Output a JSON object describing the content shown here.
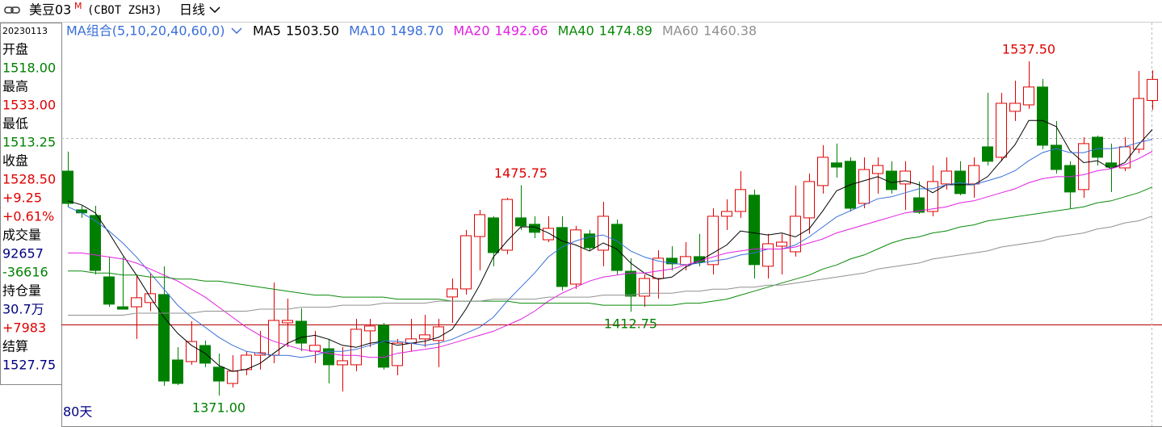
{
  "chart_data": {
    "type": "candlestick",
    "title": "美豆03",
    "title_mark": "M",
    "symbol": "(CBOT ZSH3)",
    "period": "日线",
    "ma_group": "MA组合(5,10,20,40,60,0)",
    "span": "80天",
    "ylim": [
      1355.7,
      1556.8
    ],
    "up_color": "#e00000",
    "down_color": "#008000",
    "candles": {
      "open": [
        1482.8,
        1463.5,
        1460.7,
        1430.1,
        1415.2,
        1415.2,
        1417.3,
        1421.3,
        1388.7,
        1387.9,
        1395.9,
        1385.1,
        1377,
        1383.9,
        1391.1,
        1391.1,
        1407.2,
        1408,
        1393.1,
        1394.3,
        1386.3,
        1386.3,
        1403.2,
        1406,
        1385.9,
        1397.1,
        1399.2,
        1398.4,
        1420.1,
        1424.1,
        1450.2,
        1459.5,
        1443.4,
        1459.5,
        1456.3,
        1448.6,
        1454.7,
        1426.5,
        1451.5,
        1443.4,
        1456.3,
        1432.9,
        1420.5,
        1429.3,
        1439.4,
        1436.2,
        1440.2,
        1436.2,
        1460.3,
        1462.7,
        1470.8,
        1435.4,
        1445.4,
        1442.6,
        1459.5,
        1475.6,
        1486.9,
        1487.7,
        1466.7,
        1481.6,
        1482.8,
        1476.4,
        1469.5,
        1462.7,
        1476.4,
        1482.8,
        1476.4,
        1494.9,
        1489.7,
        1512.6,
        1515.8,
        1524.7,
        1495.7,
        1485.6,
        1473.6,
        1499.7,
        1486.9,
        1484.4,
        1493.7,
        1518
      ],
      "high": [
        1492.5,
        1465.5,
        1465.5,
        1440.2,
        1440,
        1431.3,
        1432,
        1435.4,
        1395.1,
        1408,
        1398.4,
        1391.9,
        1391.1,
        1393.1,
        1403.2,
        1427.3,
        1419.3,
        1414.4,
        1403.2,
        1399.2,
        1395.1,
        1409.2,
        1409.2,
        1407.2,
        1399.2,
        1409.2,
        1411.2,
        1409.2,
        1429.3,
        1453.5,
        1463.5,
        1460.3,
        1469.5,
        1475.75,
        1460.3,
        1460.3,
        1460.3,
        1455.5,
        1453.5,
        1467.5,
        1458.7,
        1439.4,
        1431.3,
        1443.4,
        1445.4,
        1447.4,
        1451.5,
        1464.3,
        1468.7,
        1482.8,
        1473.6,
        1451.5,
        1451.5,
        1475.6,
        1481.6,
        1495.7,
        1496.5,
        1489.7,
        1489.7,
        1489.7,
        1487.7,
        1487.7,
        1477.6,
        1485.6,
        1489.7,
        1487.7,
        1489.7,
        1521.8,
        1521.8,
        1527.9,
        1537.5,
        1528.7,
        1507.8,
        1487.7,
        1499.7,
        1500.5,
        1496.5,
        1499.7,
        1532.7,
        1533
      ],
      "low": [
        1464.7,
        1459.5,
        1431.3,
        1415.2,
        1414,
        1399.2,
        1413,
        1375.8,
        1376.2,
        1386.3,
        1385.1,
        1371,
        1375,
        1381.1,
        1383.9,
        1387.1,
        1395.1,
        1393.1,
        1387.1,
        1377,
        1373,
        1383.1,
        1395.1,
        1383.9,
        1381.1,
        1393.1,
        1395.1,
        1385.1,
        1407.2,
        1421.3,
        1433.3,
        1435.4,
        1441.4,
        1453.5,
        1449.4,
        1447.4,
        1423.3,
        1424.1,
        1443.4,
        1435.4,
        1431.3,
        1412.75,
        1415.2,
        1419.3,
        1433.3,
        1433.3,
        1435.4,
        1431.3,
        1453.5,
        1459.5,
        1429.3,
        1429.3,
        1431.3,
        1440.2,
        1451.5,
        1471.6,
        1479.6,
        1462.7,
        1464.3,
        1471.6,
        1471.6,
        1463.5,
        1461.5,
        1460.3,
        1473.6,
        1470.8,
        1469.5,
        1485.6,
        1487.7,
        1507.8,
        1513.8,
        1493.7,
        1481.6,
        1464.3,
        1469.5,
        1485.6,
        1472.4,
        1482.8,
        1491.7,
        1513.25
      ],
      "close": [
        1466.7,
        1462,
        1433.3,
        1416.5,
        1414,
        1419.7,
        1421.7,
        1378.2,
        1377,
        1397.9,
        1387.1,
        1378.2,
        1383.1,
        1391.1,
        1392.3,
        1408.4,
        1408.4,
        1397.1,
        1396,
        1386.3,
        1388.3,
        1404,
        1405.6,
        1385.1,
        1397.1,
        1399.2,
        1401.2,
        1405.2,
        1424.1,
        1450.6,
        1461.1,
        1442.2,
        1468.7,
        1455.5,
        1452.3,
        1454.3,
        1425.3,
        1453.5,
        1444.6,
        1460.3,
        1433.3,
        1420.5,
        1429.3,
        1439.4,
        1436.6,
        1440.2,
        1437.4,
        1460.3,
        1462.7,
        1473.6,
        1436.2,
        1446.6,
        1447.4,
        1460.3,
        1477.6,
        1489.7,
        1484.8,
        1464.3,
        1483.6,
        1485.6,
        1473.6,
        1482.8,
        1462.3,
        1477.6,
        1482.8,
        1471.6,
        1485.6,
        1487.7,
        1516.6,
        1516.6,
        1524.7,
        1495.7,
        1483.6,
        1472.4,
        1496.5,
        1489.7,
        1484.8,
        1494.9,
        1519,
        1528.5
      ]
    },
    "high_labels": [
      {
        "value": 1475.75,
        "label": "1475.75"
      },
      {
        "value": 1537.5,
        "label": "1537.50"
      }
    ],
    "low_labels": [
      {
        "value": 1371,
        "label": "1371.00"
      },
      {
        "value": 1412.75,
        "label": "1412.75"
      }
    ],
    "ma": [
      {
        "name": "MA5",
        "color": "#000000",
        "legend_value": {
          "value": 1503.5,
          "label": "1503.50"
        },
        "values": [
          1468,
          1466,
          1462,
          1452,
          1441,
          1431,
          1420,
          1410,
          1402,
          1396,
          1392,
          1386,
          1383,
          1384,
          1387,
          1392,
          1397,
          1400,
          1401,
          1399,
          1396,
          1395,
          1397,
          1398,
          1396,
          1397,
          1398,
          1400,
          1404,
          1414,
          1426,
          1440,
          1448,
          1455,
          1455,
          1452,
          1448,
          1446,
          1443,
          1447,
          1444,
          1437,
          1432,
          1429,
          1430,
          1435,
          1438,
          1442,
          1446,
          1453,
          1452,
          1451,
          1452,
          1450,
          1454,
          1463,
          1473,
          1476,
          1478,
          1480,
          1477,
          1478,
          1476,
          1472,
          1476,
          1476,
          1476,
          1480,
          1488,
          1496,
          1508,
          1508,
          1505,
          1493,
          1487,
          1488,
          1484,
          1487,
          1496,
          1503.5
        ]
      },
      {
        "name": "MA10",
        "color": "#3a6fd8",
        "legend_value": {
          "value": 1498.7,
          "label": "1498.70"
        },
        "values": [
          1465,
          1462,
          1458,
          1453,
          1447,
          1440,
          1432,
          1424,
          1416,
          1410,
          1405,
          1400,
          1396,
          1393,
          1392,
          1391,
          1391,
          1390,
          1391,
          1393,
          1393,
          1394,
          1396,
          1398,
          1398,
          1397,
          1396,
          1397,
          1399,
          1402,
          1405,
          1410,
          1418,
          1425,
          1432,
          1440,
          1445,
          1448,
          1450,
          1451,
          1448,
          1443,
          1440,
          1438,
          1437,
          1436,
          1437,
          1438,
          1439,
          1441,
          1442,
          1444,
          1444,
          1446,
          1450,
          1455,
          1460,
          1463,
          1466,
          1469,
          1470,
          1472,
          1474,
          1474,
          1476,
          1477,
          1476,
          1478,
          1480,
          1483,
          1488,
          1492,
          1494,
          1492,
          1492,
          1494,
          1494,
          1495,
          1497,
          1498.7
        ]
      },
      {
        "name": "MA20",
        "color": "#e020e0",
        "legend_value": {
          "value": 1492.66,
          "label": "1492.66"
        },
        "values": [
          1442,
          1442,
          1441,
          1440,
          1439,
          1437,
          1434,
          1431,
          1428,
          1424,
          1420,
          1415,
          1410,
          1405,
          1401,
          1398,
          1396,
          1394,
          1393,
          1392,
          1391,
          1391,
          1390,
          1390,
          1392,
          1393,
          1394,
          1395,
          1397,
          1399,
          1401,
          1403,
          1406,
          1409,
          1413,
          1418,
          1422,
          1425,
          1428,
          1430,
          1431,
          1432,
          1432,
          1433,
          1434,
          1436,
          1438,
          1440,
          1442,
          1443,
          1444,
          1444,
          1444,
          1445,
          1447,
          1449,
          1452,
          1454,
          1456,
          1458,
          1460,
          1462,
          1463,
          1464,
          1465,
          1467,
          1468,
          1470,
          1472,
          1474,
          1477,
          1479,
          1480,
          1480,
          1481,
          1483,
          1484,
          1486,
          1489,
          1492.66
        ]
      },
      {
        "name": "MA40",
        "color": "#0a8a0a",
        "legend_value": {
          "value": 1474.89,
          "label": "1474.89"
        },
        "values": [
          1433,
          1433,
          1432,
          1432,
          1431,
          1431,
          1430,
          1430,
          1429,
          1429,
          1428,
          1428,
          1427,
          1426,
          1425,
          1424,
          1423,
          1422,
          1421,
          1421,
          1420,
          1420,
          1420,
          1420,
          1419,
          1419,
          1419,
          1419,
          1418,
          1418,
          1418,
          1418,
          1418,
          1417,
          1417,
          1417,
          1417,
          1417,
          1417,
          1416,
          1416,
          1416,
          1416,
          1416,
          1416,
          1417,
          1417,
          1418,
          1419,
          1421,
          1423,
          1425,
          1427,
          1429,
          1431,
          1434,
          1436,
          1439,
          1441,
          1444,
          1447,
          1449,
          1450,
          1452,
          1453,
          1455,
          1456,
          1458,
          1459,
          1460,
          1461,
          1462,
          1463,
          1464,
          1465,
          1467,
          1468,
          1470,
          1472,
          1474.89
        ]
      },
      {
        "name": "MA60",
        "color": "#909090",
        "legend_value": {
          "value": 1460.38,
          "label": "1460.38"
        },
        "values": [
          1411,
          1411,
          1411,
          1411,
          1411,
          1412,
          1412,
          1412,
          1412,
          1412,
          1413,
          1413,
          1413,
          1413,
          1414,
          1414,
          1414,
          1415,
          1415,
          1415,
          1416,
          1416,
          1416,
          1417,
          1417,
          1417,
          1417,
          1418,
          1418,
          1418,
          1418,
          1419,
          1419,
          1419,
          1419,
          1420,
          1420,
          1420,
          1420,
          1421,
          1421,
          1421,
          1422,
          1422,
          1422,
          1423,
          1423,
          1424,
          1424,
          1425,
          1425,
          1426,
          1426,
          1427,
          1428,
          1429,
          1430,
          1431,
          1432,
          1434,
          1435,
          1436,
          1437,
          1439,
          1440,
          1441,
          1442,
          1443,
          1445,
          1446,
          1447,
          1448,
          1450,
          1451,
          1452,
          1454,
          1455,
          1457,
          1458,
          1460.38
        ]
      }
    ],
    "info_panel": {
      "date": "20230113",
      "rows": [
        {
          "label": "开盘",
          "value": "1518.00",
          "color": "#008000"
        },
        {
          "label": "最高",
          "value": "1533.00",
          "color": "#e00000"
        },
        {
          "label": "最低",
          "value": "1513.25",
          "color": "#008000"
        },
        {
          "label": "收盘",
          "value": "1528.50",
          "color": "#e00000"
        },
        {
          "value": "+9.25",
          "color": "#e00000"
        },
        {
          "value": "+0.61%",
          "color": "#e00000"
        },
        {
          "label": "成交量",
          "value": "92657",
          "color": "#000080"
        },
        {
          "value": "-36616",
          "color": "#008000"
        },
        {
          "label": "持仓量",
          "value": "30.7万",
          "color": "#000080"
        },
        {
          "value": "+7983",
          "color": "#e00000"
        },
        {
          "label": "结算",
          "value": "1527.75",
          "color": "#000080"
        }
      ]
    }
  }
}
